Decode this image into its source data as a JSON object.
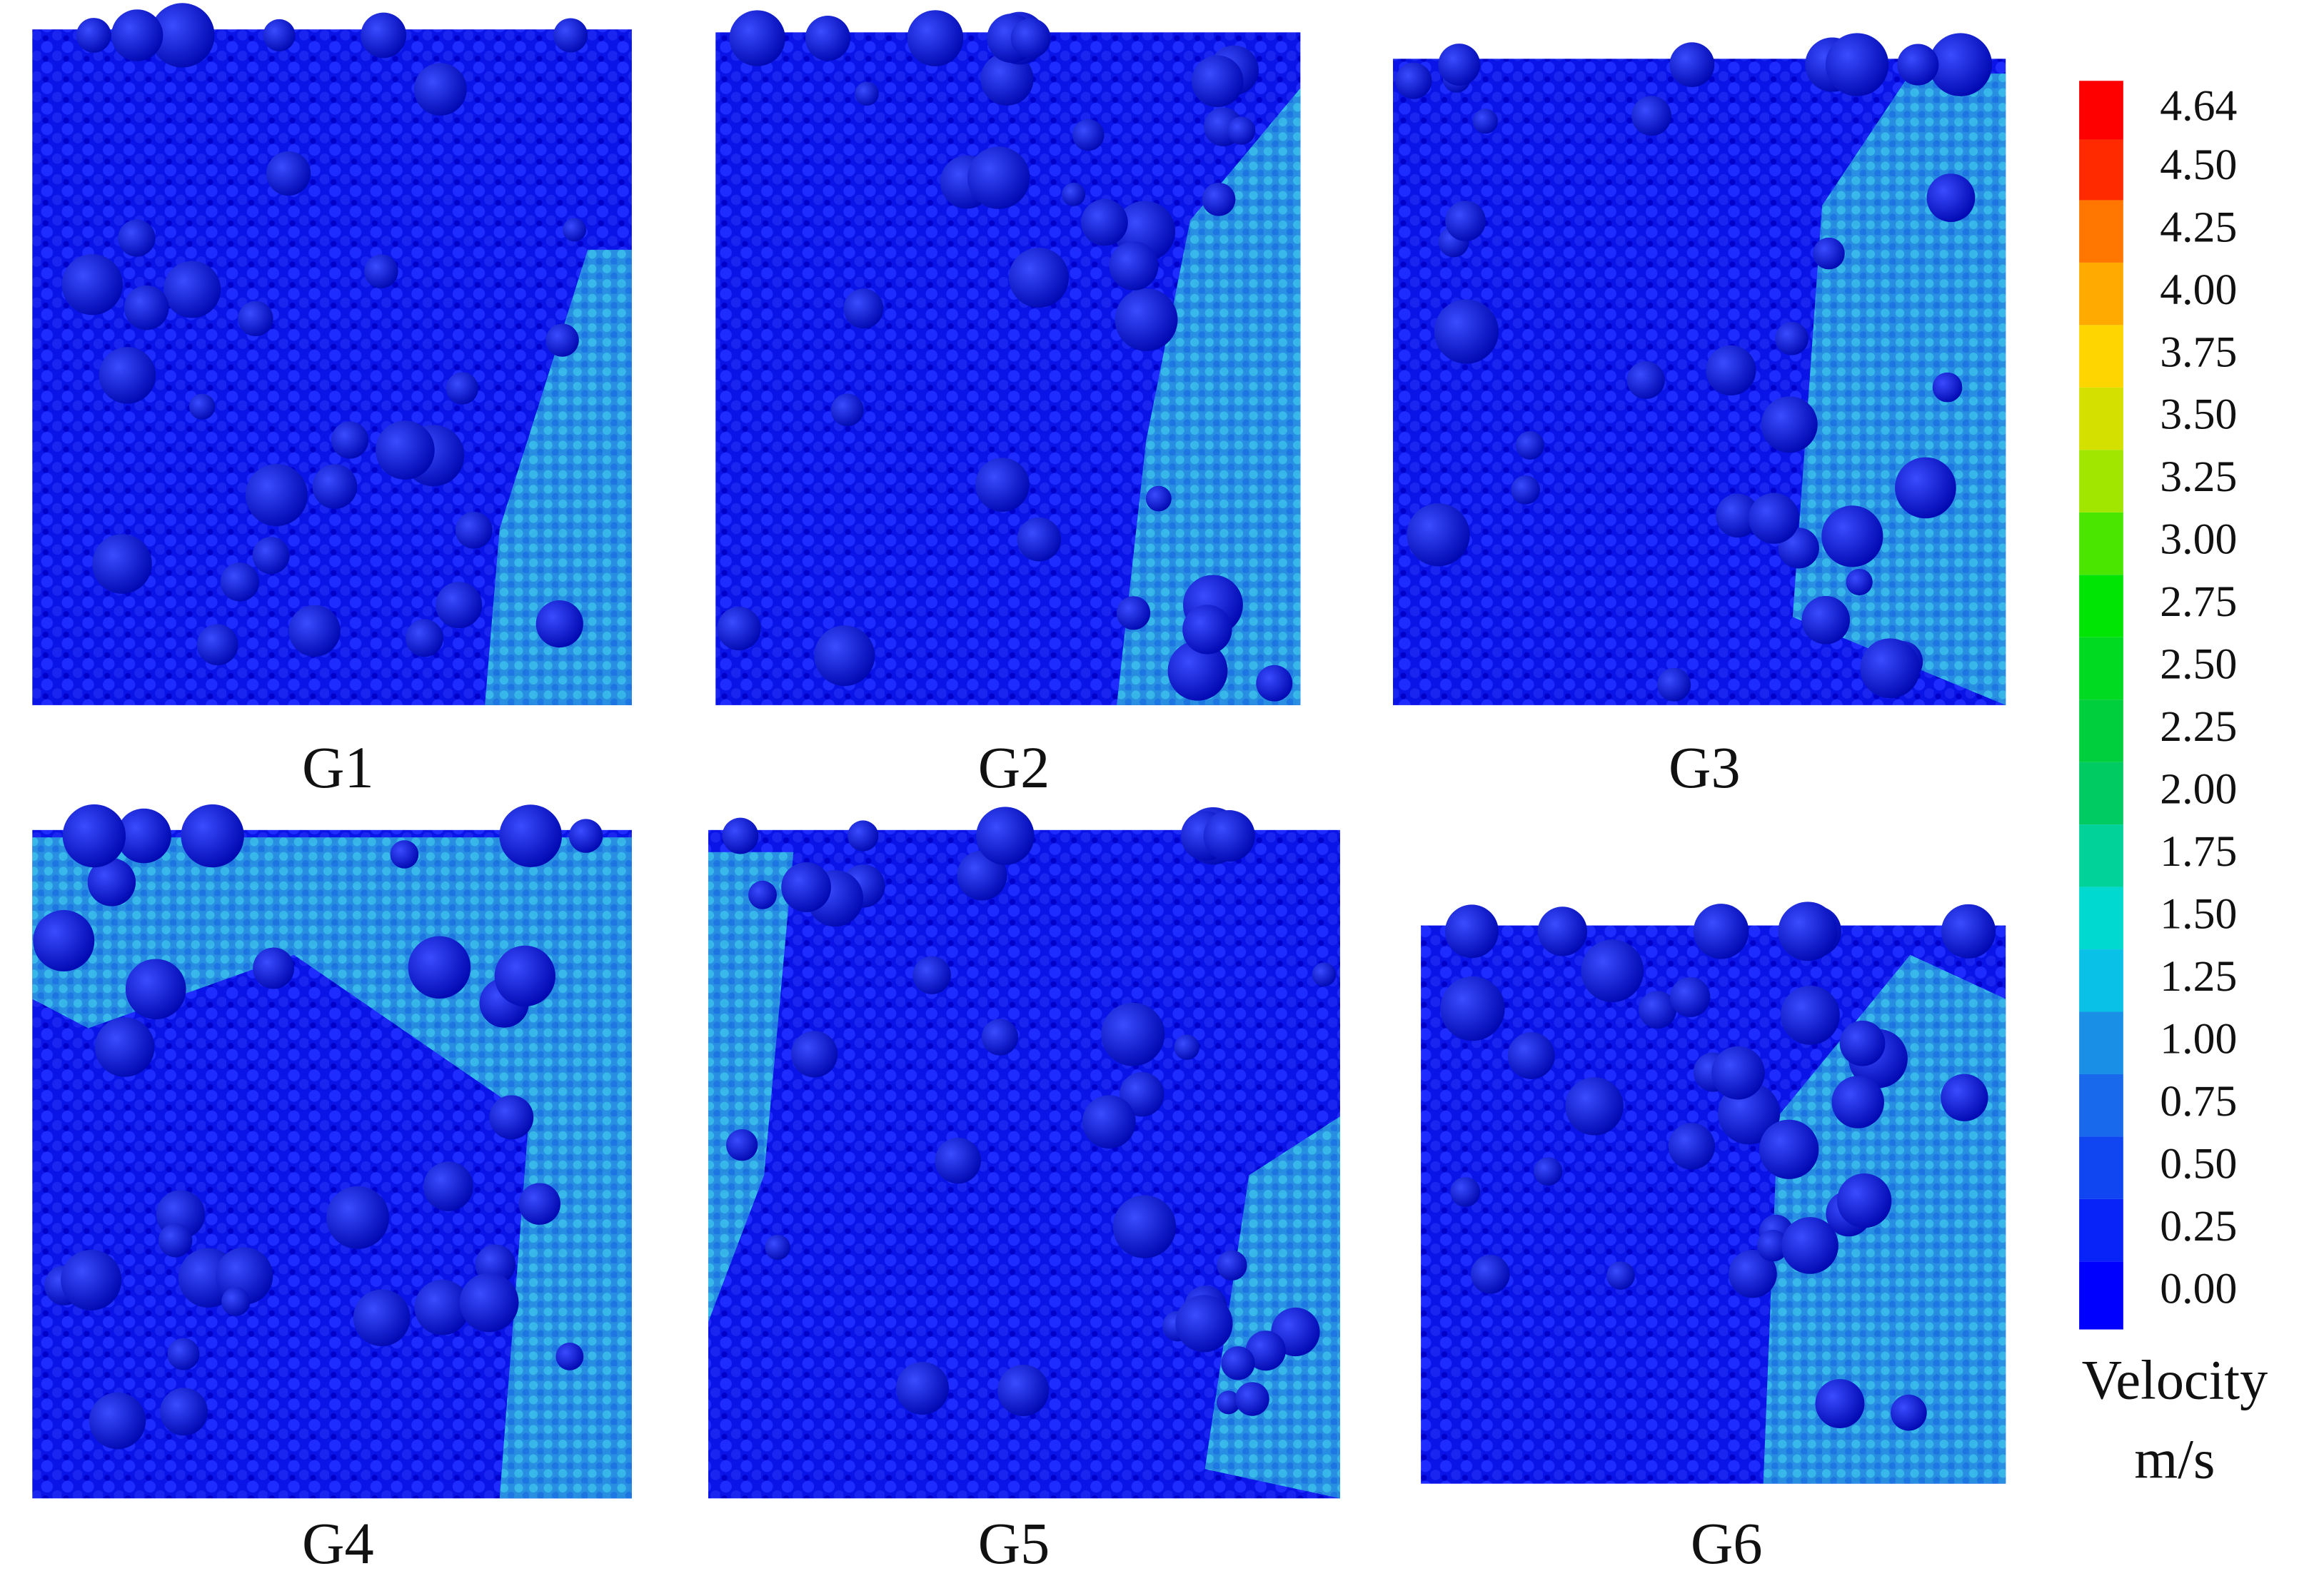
{
  "panels": [
    {
      "label": "G1"
    },
    {
      "label": "G2"
    },
    {
      "label": "G3"
    },
    {
      "label": "G4"
    },
    {
      "label": "G5"
    },
    {
      "label": "G6"
    }
  ],
  "colorbar": {
    "ticks": [
      {
        "value": 0,
        "label": "0.00"
      },
      {
        "value": 0.25,
        "label": "0.25"
      },
      {
        "value": 0.5,
        "label": "0.50"
      },
      {
        "value": 0.75,
        "label": "0.75"
      },
      {
        "value": 1,
        "label": "1.00"
      },
      {
        "value": 1.25,
        "label": "1.25"
      },
      {
        "value": 1.5,
        "label": "1.50"
      },
      {
        "value": 1.75,
        "label": "1.75"
      },
      {
        "value": 2,
        "label": "2.00"
      },
      {
        "value": 2.25,
        "label": "2.25"
      },
      {
        "value": 2.5,
        "label": "2.50"
      },
      {
        "value": 2.75,
        "label": "2.75"
      },
      {
        "value": 3,
        "label": "3.00"
      },
      {
        "value": 3.25,
        "label": "3.25"
      },
      {
        "value": 3.5,
        "label": "3.50"
      },
      {
        "value": 3.75,
        "label": "3.75"
      },
      {
        "value": 4,
        "label": "4.00"
      },
      {
        "value": 4.25,
        "label": "4.25"
      },
      {
        "value": 4.5,
        "label": "4.50"
      },
      {
        "value": 4.64,
        "label": "4.64"
      }
    ],
    "title": "Velocity",
    "unit": "m/s"
  }
}
